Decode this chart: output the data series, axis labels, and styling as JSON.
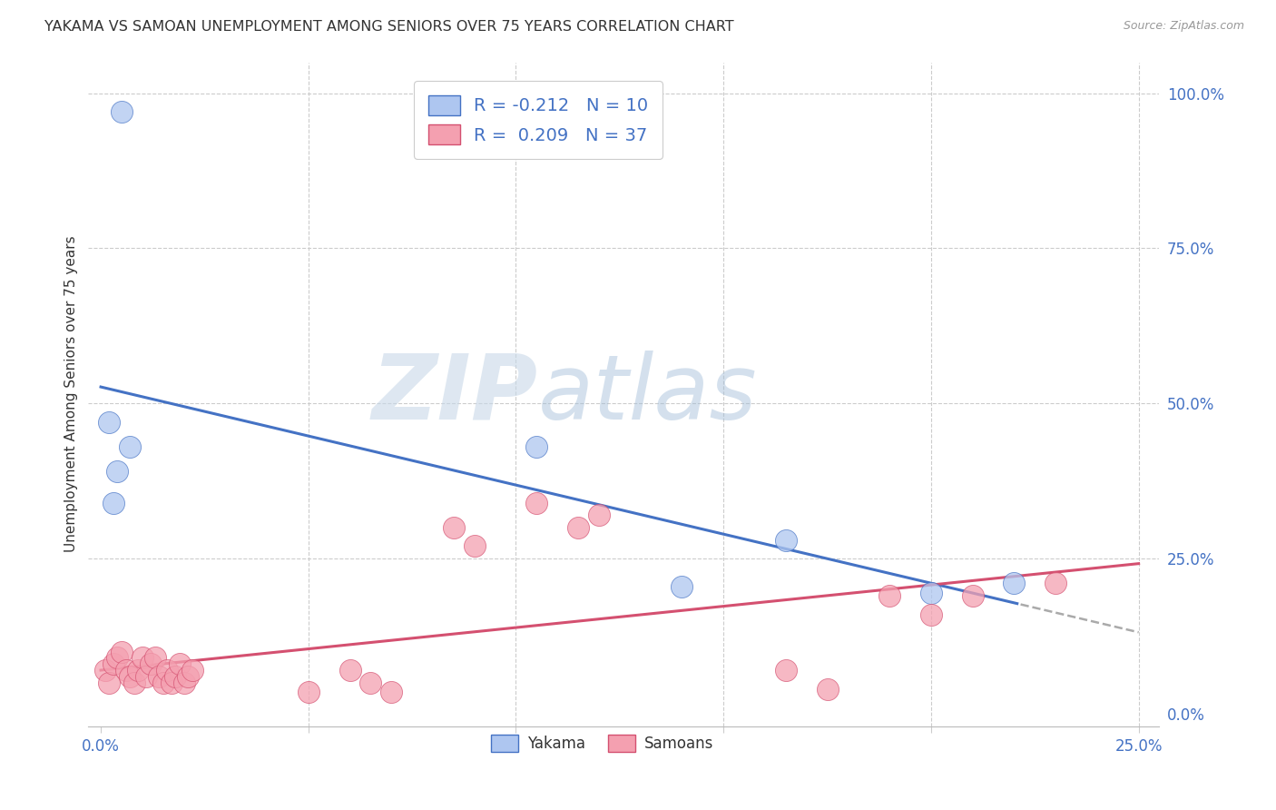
{
  "title": "YAKAMA VS SAMOAN UNEMPLOYMENT AMONG SENIORS OVER 75 YEARS CORRELATION CHART",
  "source": "Source: ZipAtlas.com",
  "ylabel": "Unemployment Among Seniors over 75 years",
  "ytick_labels": [
    "0.0%",
    "25.0%",
    "50.0%",
    "75.0%",
    "100.0%"
  ],
  "ytick_values": [
    0.0,
    0.25,
    0.5,
    0.75,
    1.0
  ],
  "xtick_labels": [
    "0.0%",
    "",
    "",
    "",
    "",
    "25.0%"
  ],
  "xtick_values": [
    0.0,
    0.05,
    0.1,
    0.15,
    0.2,
    0.25
  ],
  "xlim": [
    -0.003,
    0.255
  ],
  "ylim": [
    -0.02,
    1.05
  ],
  "yakama_color": "#aec6f0",
  "samoan_color": "#f4a0b0",
  "trendline_yakama_color": "#4472c4",
  "trendline_samoan_color": "#d45070",
  "trendline_dashed_color": "#aaaaaa",
  "watermark_zip": "ZIP",
  "watermark_atlas": "atlas",
  "legend_yakama_label": "R = -0.212   N = 10",
  "legend_samoan_label": "R =  0.209   N = 37",
  "yakama_x": [
    0.002,
    0.005,
    0.007,
    0.004,
    0.003,
    0.105,
    0.14,
    0.2,
    0.22,
    0.165
  ],
  "yakama_y": [
    0.47,
    0.97,
    0.43,
    0.39,
    0.34,
    0.43,
    0.205,
    0.195,
    0.21,
    0.28
  ],
  "samoan_x": [
    0.001,
    0.002,
    0.003,
    0.004,
    0.005,
    0.006,
    0.007,
    0.008,
    0.009,
    0.01,
    0.011,
    0.012,
    0.013,
    0.014,
    0.015,
    0.016,
    0.017,
    0.018,
    0.019,
    0.02,
    0.021,
    0.022,
    0.05,
    0.06,
    0.065,
    0.07,
    0.085,
    0.09,
    0.105,
    0.115,
    0.12,
    0.165,
    0.175,
    0.19,
    0.2,
    0.21,
    0.23
  ],
  "samoan_y": [
    0.07,
    0.05,
    0.08,
    0.09,
    0.1,
    0.07,
    0.06,
    0.05,
    0.07,
    0.09,
    0.06,
    0.08,
    0.09,
    0.06,
    0.05,
    0.07,
    0.05,
    0.06,
    0.08,
    0.05,
    0.06,
    0.07,
    0.035,
    0.07,
    0.05,
    0.035,
    0.3,
    0.27,
    0.34,
    0.3,
    0.32,
    0.07,
    0.04,
    0.19,
    0.16,
    0.19,
    0.21
  ]
}
